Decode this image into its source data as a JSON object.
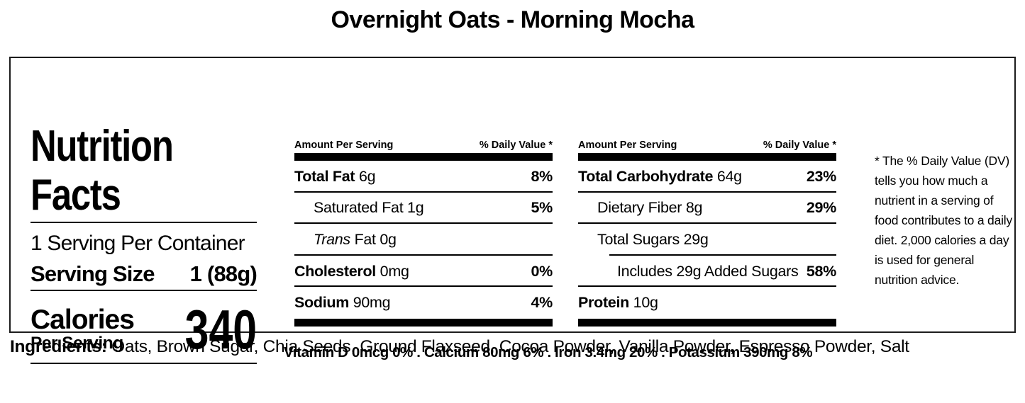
{
  "title": "Overnight Oats - Morning Mocha",
  "label": {
    "heading": "Nutrition Facts",
    "servings_per_container": "1 Serving Per Container",
    "serving_size_label": "Serving Size",
    "serving_size_value": "1 (88g)",
    "calories_label": "Calories",
    "calories_sub": "Per Serving",
    "calories_value": "340",
    "col_header_amount": "Amount Per Serving",
    "col_header_dv": "% Daily Value *",
    "columns": [
      {
        "rows": [
          {
            "bold": "Total Fat",
            "rest": "6g",
            "dv": "8%"
          },
          {
            "bold": "",
            "rest": "Saturated Fat 1g",
            "dv": "5%"
          },
          {
            "italic": "Trans",
            "rest": "Fat 0g",
            "dv": ""
          },
          {
            "bold": "Cholesterol",
            "rest": "0mg",
            "dv": "0%"
          },
          {
            "bold": "Sodium",
            "rest": "90mg",
            "dv": "4%"
          }
        ]
      },
      {
        "rows": [
          {
            "bold": "Total Carbohydrate",
            "rest": "64g",
            "dv": "23%"
          },
          {
            "bold": "",
            "rest": "Dietary Fiber 8g",
            "dv": "29%"
          },
          {
            "bold": "",
            "rest": "Total Sugars 29g",
            "dv": ""
          },
          {
            "bold": "",
            "rest": "Includes 29g Added Sugars",
            "dv": "58%"
          },
          {
            "bold": "Protein",
            "rest": "10g",
            "dv": ""
          }
        ]
      }
    ],
    "micronutrients": "Vitamin D 0mcg 0% . Calcium 80mg 6% . Iron 3.4mg 20% . Potassium 390mg 8%",
    "footnote": "* The % Daily Value (DV) tells you how much a nutrient in a serving of food contributes to a daily diet. 2,000 calories a day is used for general nutrition advice."
  },
  "ingredients": {
    "label": "Ingredients:",
    "value": "Oats, Brown Sugar, Chia Seeds, Ground Flaxseed, Cocoa Powder, Vanilla Powder, Espresso Powder, Salt"
  }
}
